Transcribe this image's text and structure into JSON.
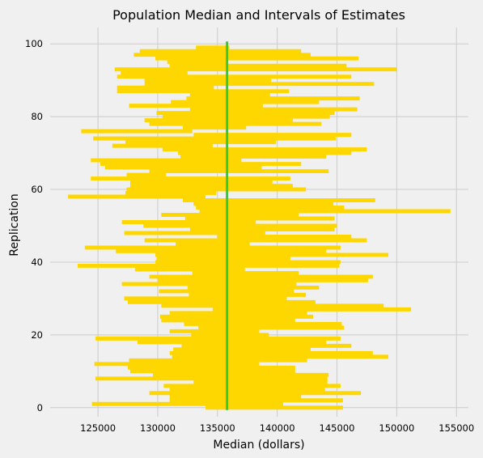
{
  "chart_data": {
    "type": "interval",
    "title": "Population Median and Intervals of Estimates",
    "xlabel": "Median (dollars)",
    "ylabel": "Replication",
    "xlim": [
      121000,
      156000
    ],
    "ylim": [
      -2.5,
      104.5
    ],
    "xticks": [
      125000,
      130000,
      135000,
      140000,
      145000,
      150000,
      155000
    ],
    "yticks": [
      0,
      20,
      40,
      60,
      80,
      100
    ],
    "grid": true,
    "population_median": 135800,
    "interval_color": "#ffd700",
    "median_color": "#32cd32",
    "intervals": [
      [
        134000,
        145500
      ],
      [
        124500,
        140500
      ],
      [
        131000,
        145500
      ],
      [
        131000,
        142000
      ],
      [
        129300,
        147000
      ],
      [
        131000,
        144000
      ],
      [
        130500,
        145300
      ],
      [
        133000,
        144200
      ],
      [
        124800,
        144200
      ],
      [
        129600,
        144300
      ],
      [
        127700,
        141500
      ],
      [
        127500,
        141500
      ],
      [
        124700,
        138500
      ],
      [
        127600,
        142500
      ],
      [
        131200,
        149300
      ],
      [
        131000,
        148000
      ],
      [
        131300,
        142800
      ],
      [
        132000,
        146200
      ],
      [
        128300,
        144100
      ],
      [
        124800,
        145300
      ],
      [
        132800,
        139300
      ],
      [
        131000,
        138500
      ],
      [
        133400,
        145600
      ],
      [
        132200,
        145400
      ],
      [
        130300,
        141500
      ],
      [
        130200,
        143000
      ],
      [
        131000,
        142500
      ],
      [
        134600,
        151200
      ],
      [
        130300,
        148900
      ],
      [
        127500,
        143200
      ],
      [
        127200,
        140800
      ],
      [
        132600,
        142400
      ],
      [
        130100,
        141400
      ],
      [
        132500,
        143500
      ],
      [
        127000,
        141600
      ],
      [
        130000,
        147600
      ],
      [
        129300,
        148000
      ],
      [
        132900,
        141800
      ],
      [
        128100,
        137300
      ],
      [
        123300,
        145200
      ],
      [
        129800,
        145300
      ],
      [
        129900,
        141100
      ],
      [
        129800,
        149300
      ],
      [
        126500,
        144100
      ],
      [
        123900,
        145300
      ],
      [
        131500,
        137700
      ],
      [
        128900,
        147500
      ],
      [
        135000,
        146200
      ],
      [
        127200,
        139000
      ],
      [
        132700,
        144800
      ],
      [
        128800,
        145000
      ],
      [
        127000,
        138200
      ],
      [
        132300,
        144800
      ],
      [
        130300,
        141800
      ],
      [
        133500,
        154500
      ],
      [
        133200,
        145600
      ],
      [
        133000,
        144700
      ],
      [
        132100,
        148200
      ],
      [
        122500,
        134000
      ],
      [
        127300,
        134900
      ],
      [
        127400,
        142400
      ],
      [
        127700,
        141300
      ],
      [
        127700,
        139600
      ],
      [
        124400,
        141100
      ],
      [
        127400,
        130700
      ],
      [
        129300,
        144300
      ],
      [
        125600,
        138700
      ],
      [
        125200,
        142000
      ],
      [
        124400,
        137000
      ],
      [
        131900,
        144100
      ],
      [
        131700,
        146200
      ],
      [
        130400,
        147500
      ],
      [
        126200,
        134600
      ],
      [
        127300,
        139900
      ],
      [
        124600,
        144900
      ],
      [
        133000,
        146200
      ],
      [
        123600,
        132900
      ],
      [
        132100,
        137400
      ],
      [
        129300,
        143700
      ],
      [
        128900,
        141300
      ],
      [
        130400,
        144400
      ],
      [
        129900,
        144800
      ],
      [
        132700,
        146700
      ],
      [
        127600,
        138800
      ],
      [
        131100,
        143500
      ],
      [
        132400,
        146900
      ],
      [
        132700,
        139400
      ],
      [
        126600,
        141000
      ],
      [
        126600,
        134700
      ],
      [
        128900,
        148100
      ],
      [
        128900,
        139500
      ],
      [
        126600,
        146200
      ],
      [
        126900,
        132500
      ],
      [
        126400,
        150000
      ],
      [
        131000,
        145800
      ],
      [
        130800,
        135700
      ],
      [
        129800,
        146800
      ],
      [
        128000,
        142800
      ],
      [
        128500,
        142000
      ],
      [
        133200,
        136000
      ]
    ]
  }
}
